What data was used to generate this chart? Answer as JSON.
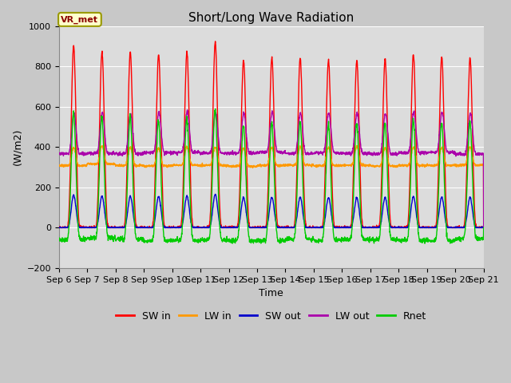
{
  "title": "Short/Long Wave Radiation",
  "xlabel": "Time",
  "ylabel": "(W/m2)",
  "legend_label": "VR_met",
  "ylim": [
    -200,
    1000
  ],
  "x_tick_labels": [
    "Sep 6",
    "Sep 7",
    "Sep 8",
    "Sep 9",
    "Sep 10",
    "Sep 11",
    "Sep 12",
    "Sep 13",
    "Sep 14",
    "Sep 15",
    "Sep 16",
    "Sep 17",
    "Sep 18",
    "Sep 19",
    "Sep 20",
    "Sep 21"
  ],
  "series": {
    "SW_in": {
      "color": "#ff0000",
      "label": "SW in"
    },
    "LW_in": {
      "color": "#ff9900",
      "label": "LW in"
    },
    "SW_out": {
      "color": "#0000cc",
      "label": "SW out"
    },
    "LW_out": {
      "color": "#aa00aa",
      "label": "LW out"
    },
    "Rnet": {
      "color": "#00cc00",
      "label": "Rnet"
    }
  },
  "background_color": "#e8e8e8",
  "axes_facecolor": "#dcdcdc",
  "grid_color": "#ffffff",
  "title_fontsize": 11,
  "axis_fontsize": 9,
  "tick_fontsize": 8,
  "legend_fontsize": 9,
  "line_width": 1.0,
  "days": 15
}
